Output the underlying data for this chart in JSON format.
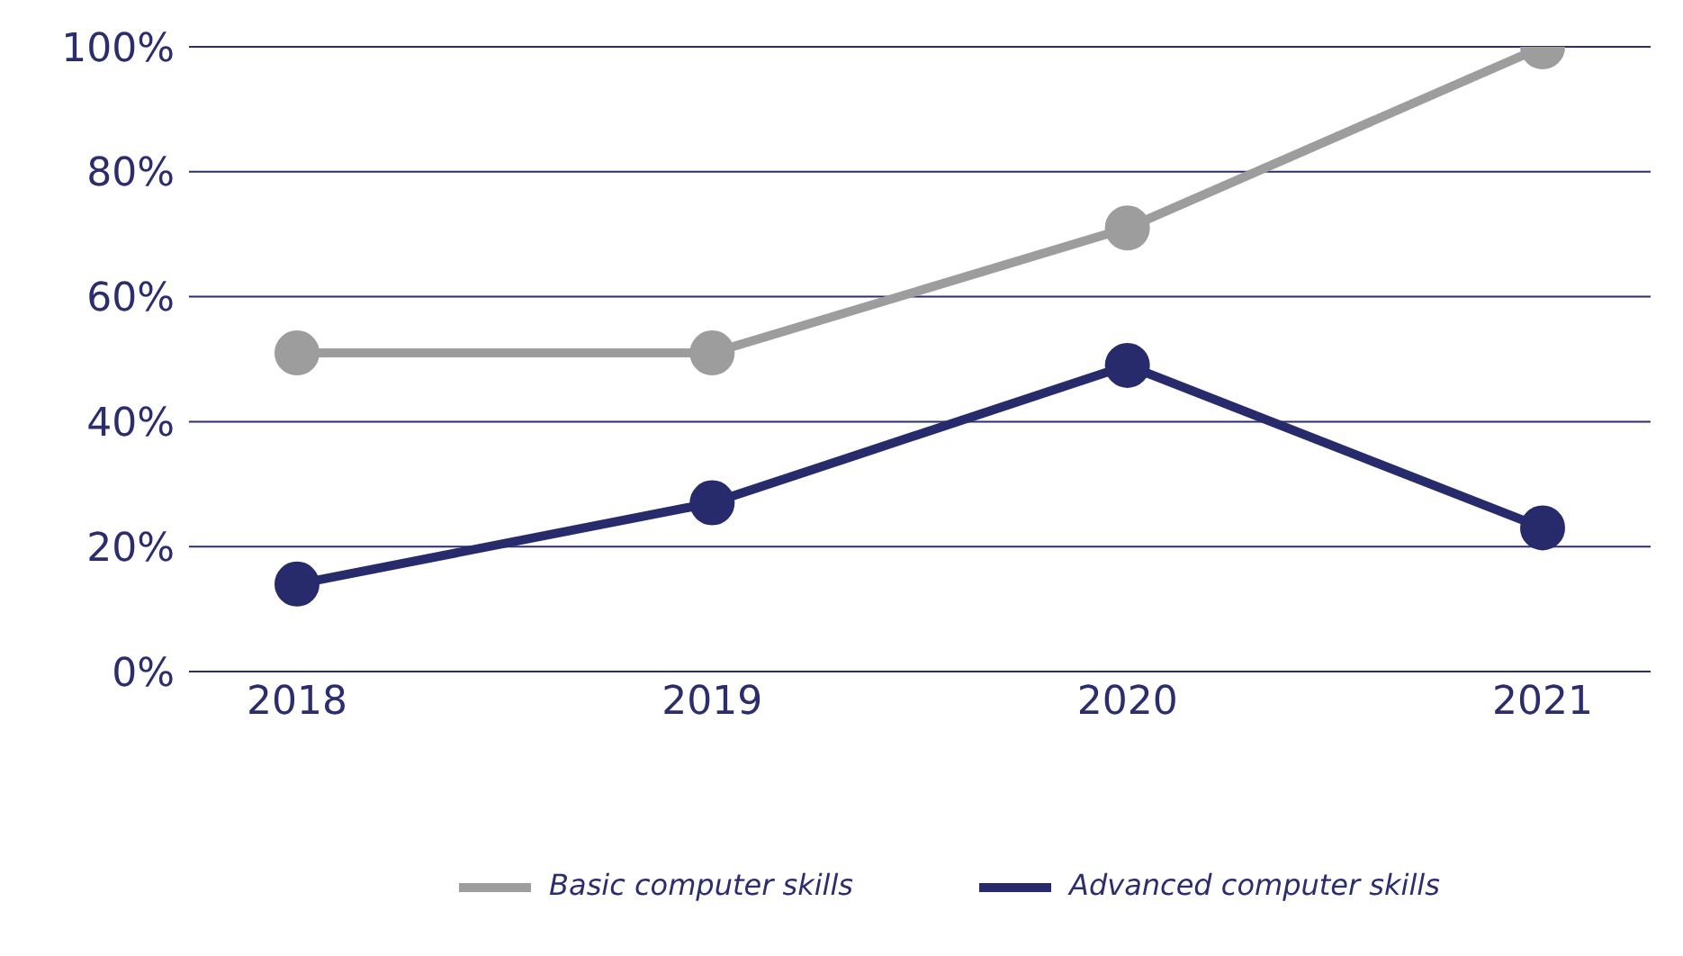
{
  "chart_data": {
    "type": "line",
    "categories": [
      "2018",
      "2019",
      "2020",
      "2021"
    ],
    "series": [
      {
        "name": "Basic computer skills",
        "color": "#9d9d9d",
        "values": [
          51,
          51,
          71,
          100
        ]
      },
      {
        "name": "Advanced computer skills",
        "color": "#272b6b",
        "values": [
          14,
          27,
          49,
          23
        ]
      }
    ],
    "ylim": [
      0,
      100
    ],
    "yticks": [
      {
        "value": 0,
        "label": "0%"
      },
      {
        "value": 20,
        "label": "20%"
      },
      {
        "value": 40,
        "label": "40%"
      },
      {
        "value": 60,
        "label": "60%"
      },
      {
        "value": 80,
        "label": "80%"
      },
      {
        "value": 100,
        "label": "100%"
      }
    ],
    "grid": "y",
    "legend": "bottom",
    "marker": "circle",
    "line_style": "solid"
  }
}
